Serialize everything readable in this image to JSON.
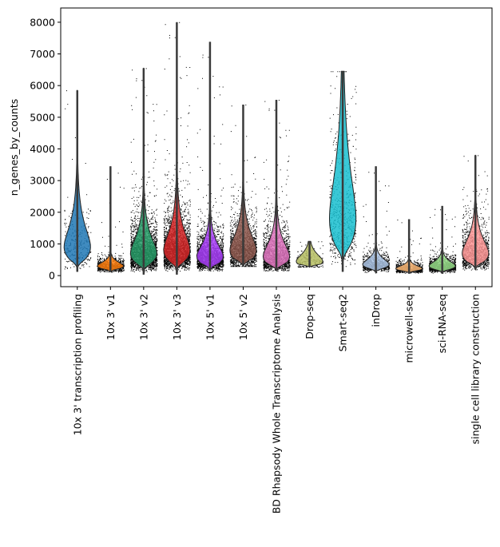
{
  "chart_data": {
    "type": "violin",
    "title": "",
    "xlabel": "",
    "ylabel": "n_genes_by_counts",
    "ylim": [
      -350,
      8450
    ],
    "yticks": [
      0,
      1000,
      2000,
      3000,
      4000,
      5000,
      6000,
      7000,
      8000
    ],
    "yticks_text": [
      "0",
      "1000",
      "2000",
      "3000",
      "4000",
      "5000",
      "6000",
      "7000",
      "8000"
    ],
    "grid": false,
    "legend": "none",
    "categories": [
      "10x 3' transcription profiling",
      "10x 3' v1",
      "10x 3' v2",
      "10x 3' v3",
      "10x 5' v1",
      "10x 5' v2",
      "BD Rhapsody Whole Transcriptome Analysis",
      "Drop-seq",
      "Smart-seq2",
      "inDrop",
      "microwell-seq",
      "sci-RNA-seq",
      "single cell library construction"
    ],
    "series": [
      {
        "color": "#1f77b4",
        "min": 120,
        "max": 5850,
        "mode": 900,
        "spread": 0.55,
        "density": 0.08
      },
      {
        "color": "#ff7f0e",
        "min": 120,
        "max": 3450,
        "mode": 300,
        "spread": 0.35,
        "density": 0.35
      },
      {
        "color": "#279e68",
        "min": 30,
        "max": 6550,
        "mode": 700,
        "spread": 0.55,
        "density": 1.0
      },
      {
        "color": "#d62728",
        "min": 30,
        "max": 8000,
        "mode": 800,
        "spread": 0.55,
        "density": 1.0
      },
      {
        "color": "#aa40fc",
        "min": 160,
        "max": 7380,
        "mode": 600,
        "spread": 0.5,
        "density": 0.85
      },
      {
        "color": "#8c564b",
        "min": 300,
        "max": 5400,
        "mode": 800,
        "spread": 0.5,
        "density": 0.6
      },
      {
        "color": "#e377c2",
        "min": 160,
        "max": 5550,
        "mode": 600,
        "spread": 0.55,
        "density": 0.7
      },
      {
        "color": "#b5bd61",
        "min": 280,
        "max": 1080,
        "mode": 450,
        "spread": 0.4,
        "density": 0.05
      },
      {
        "color": "#17becf",
        "min": 120,
        "max": 6450,
        "mode": 1800,
        "spread": 0.6,
        "density": 0.25
      },
      {
        "color": "#aec7e8",
        "min": 90,
        "max": 3450,
        "mode": 350,
        "spread": 0.4,
        "density": 0.35
      },
      {
        "color": "#ffbb78",
        "min": 60,
        "max": 1780,
        "mode": 220,
        "spread": 0.35,
        "density": 0.35
      },
      {
        "color": "#98df8a",
        "min": 60,
        "max": 2200,
        "mode": 300,
        "spread": 0.4,
        "density": 0.5
      },
      {
        "color": "#ff9896",
        "min": 190,
        "max": 3800,
        "mode": 700,
        "spread": 0.5,
        "density": 0.55
      }
    ]
  }
}
